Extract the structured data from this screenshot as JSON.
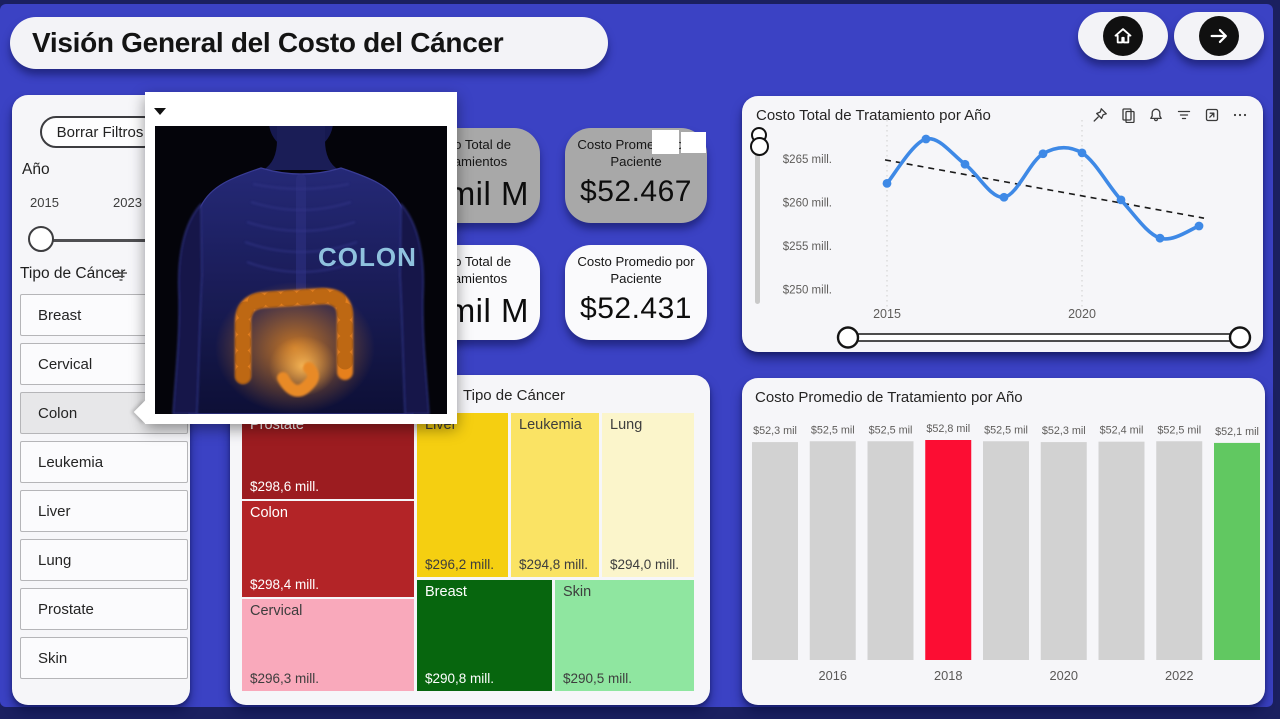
{
  "page": {
    "title": "Visión General del Costo del Cáncer"
  },
  "nav": {
    "home_icon": "home",
    "next_icon": "arrow-right"
  },
  "filters": {
    "clear_button": "Borrar Filtros",
    "year": {
      "label": "Año",
      "min": "2015",
      "max": "2023"
    },
    "cancer_type": {
      "label": "Tipo de Cáncer",
      "items": [
        "Breast",
        "Cervical",
        "Colon",
        "Leukemia",
        "Liver",
        "Lung",
        "Prostate",
        "Skin"
      ],
      "selected": "Colon"
    }
  },
  "popup": {
    "image_label": "COLON"
  },
  "kpi_cards": [
    {
      "title": "Costo Total de Tratamientos",
      "value": "mil M",
      "style": "gray"
    },
    {
      "title": "Costo Promedio por Paciente",
      "value": "$52.467",
      "style": "gray"
    },
    {
      "title": "Costo Total de Tratamientos",
      "value": "mil M",
      "style": "white"
    },
    {
      "title": "Costo Promedio por Paciente",
      "value": "$52.431",
      "style": "white"
    }
  ],
  "line_toolbar_icons": [
    "pin-icon",
    "copy-icon",
    "bell-icon",
    "filter-icon",
    "focus-icon",
    "more-icon"
  ],
  "chart_data": [
    {
      "type": "line",
      "title": "Costo Total de Tratamiento por Año",
      "x": [
        2015,
        2016,
        2017,
        2018,
        2019,
        2020,
        2021,
        2022,
        2023
      ],
      "series": [
        {
          "name": "Costo Total de Tratamiento",
          "values": [
            262.2,
            267.3,
            264.4,
            260.6,
            265.6,
            265.7,
            260.3,
            255.9,
            257.3
          ]
        }
      ],
      "trendline": {
        "from": 264.9,
        "to": 258.2,
        "style": "dashed"
      },
      "yticks": [
        {
          "label": "$265 mill.",
          "value": 265
        },
        {
          "label": "$260 mill.",
          "value": 260
        },
        {
          "label": "$255 mill.",
          "value": 255
        },
        {
          "label": "$250 mill.",
          "value": 250
        }
      ],
      "xticks": [
        2015,
        2020
      ],
      "ylim": [
        249,
        268
      ],
      "line_color": "#3e89e6",
      "grid": "dotted-vertical",
      "legend": "none"
    },
    {
      "type": "treemap",
      "title": "Tipo de Cáncer",
      "items": [
        {
          "label": "Prostate",
          "value": "$298,6 mill.",
          "color": "#9c1c20",
          "text": "light"
        },
        {
          "label": "Colon",
          "value": "$298,4 mill.",
          "color": "#b32427",
          "text": "light"
        },
        {
          "label": "Cervical",
          "value": "$296,3 mill.",
          "color": "#f9a9bb",
          "text": "dark"
        },
        {
          "label": "Liver",
          "value": "$296,2 mill.",
          "color": "#f5cf11",
          "text": "dark"
        },
        {
          "label": "Leukemia",
          "value": "$294,8 mill.",
          "color": "#fae364",
          "text": "dark"
        },
        {
          "label": "Lung",
          "value": "$294,0 mill.",
          "color": "#fbf5cb",
          "text": "dark"
        },
        {
          "label": "Breast",
          "value": "$290,8 mill.",
          "color": "#07660e",
          "text": "light"
        },
        {
          "label": "Skin",
          "value": "$290,5 mill.",
          "color": "#8fe6a0",
          "text": "dark"
        }
      ]
    },
    {
      "type": "bar",
      "title": "Costo Promedio de Tratamiento por Año",
      "categories": [
        2015,
        2016,
        2017,
        2018,
        2019,
        2020,
        2021,
        2022,
        2023
      ],
      "values": [
        52.3,
        52.5,
        52.5,
        52.8,
        52.5,
        52.3,
        52.4,
        52.5,
        52.1
      ],
      "labels": [
        "$52,3 mil",
        "$52,5 mil",
        "$52,5 mil",
        "$52,8 mil",
        "$52,5 mil",
        "$52,3 mil",
        "$52,4 mil",
        "$52,5 mil",
        "$52,1 mil"
      ],
      "bar_colors": [
        "#d2d2d2",
        "#d2d2d2",
        "#d2d2d2",
        "#fc0d33",
        "#d2d2d2",
        "#d2d2d2",
        "#d2d2d2",
        "#d2d2d2",
        "#61c861"
      ],
      "xticks": [
        {
          "index": 1,
          "label": "2016"
        },
        {
          "index": 3,
          "label": "2018"
        },
        {
          "index": 5,
          "label": "2020"
        },
        {
          "index": 7,
          "label": "2022"
        }
      ],
      "ylim": [
        0,
        52.8
      ]
    }
  ]
}
